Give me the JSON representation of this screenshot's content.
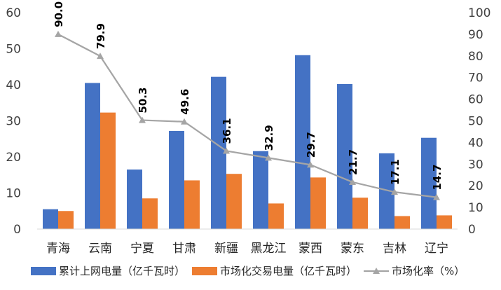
{
  "chart_data": {
    "type": "bar",
    "categories": [
      "青海",
      "云南",
      "宁夏",
      "甘肃",
      "新疆",
      "黑龙江",
      "蒙西",
      "蒙东",
      "吉林",
      "辽宁"
    ],
    "series": [
      {
        "name": "累计上网电量（亿千瓦时）",
        "type": "bar",
        "axis": "left",
        "color": "#4472C4",
        "values": [
          5.5,
          40.5,
          16.5,
          27.2,
          42.2,
          21.6,
          48.2,
          40.2,
          21.0,
          25.3
        ]
      },
      {
        "name": "市场化交易电量（亿千瓦时）",
        "type": "bar",
        "axis": "left",
        "color": "#ED7D31",
        "values": [
          5.0,
          32.3,
          8.5,
          13.5,
          15.3,
          7.1,
          14.3,
          8.7,
          3.6,
          3.8
        ]
      },
      {
        "name": "市场化率（%）",
        "type": "line",
        "axis": "right",
        "color": "#A5A5A5",
        "values": [
          90.0,
          79.9,
          50.3,
          49.6,
          36.1,
          32.9,
          29.7,
          21.7,
          17.1,
          14.7
        ],
        "labels": [
          "90.0",
          "79.9",
          "50.3",
          "49.6",
          "36.1",
          "32.9",
          "29.7",
          "21.7",
          "17.1",
          "14.7"
        ]
      }
    ],
    "ylim_left": [
      0,
      60
    ],
    "yticks_left": [
      "0",
      "10",
      "20",
      "30",
      "40",
      "50",
      "60"
    ],
    "ylim_right": [
      0,
      100
    ],
    "yticks_right": [
      "0",
      "10",
      "20",
      "30",
      "40",
      "50",
      "60",
      "70",
      "80",
      "90",
      "100"
    ],
    "grid": false,
    "legend_position": "bottom",
    "legend": [
      "累计上网电量（亿千瓦时）",
      "市场化交易电量（亿千瓦时）",
      "市场化率（%）"
    ]
  }
}
